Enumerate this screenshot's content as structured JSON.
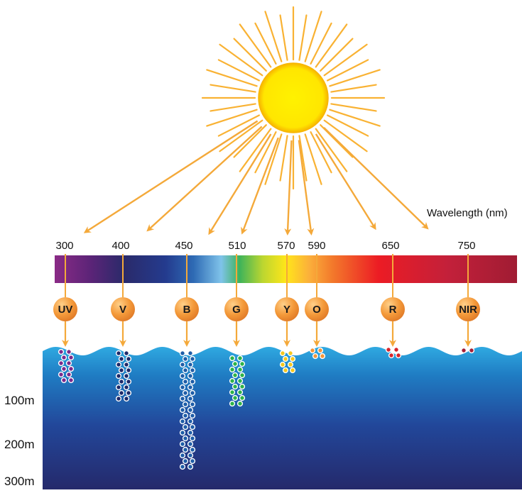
{
  "wavelength_title": "Wavelength (nm)",
  "wavelength_ticks": [
    "300",
    "400",
    "450",
    "510",
    "570",
    "590",
    "650",
    "750"
  ],
  "bands": [
    {
      "label": "UV",
      "color": "#7b2a8c"
    },
    {
      "label": "V",
      "color": "#1e2a6a"
    },
    {
      "label": "B",
      "color": "#ffffff"
    },
    {
      "label": "G",
      "color": "#2db34a"
    },
    {
      "label": "Y",
      "color": "#f7c81d"
    },
    {
      "label": "O",
      "color": "#f2963a"
    },
    {
      "label": "R",
      "color": "#d7252b"
    },
    {
      "label": "NIR",
      "color": "#a41f37"
    }
  ],
  "depth_labels": [
    "100m",
    "200m",
    "300m"
  ],
  "colors": {
    "sun": "#ffe600",
    "sun_rays": "#f9b233",
    "arrow": "#f4a93a",
    "sea_top": "#2fa6df",
    "sea_bottom": "#25296b"
  }
}
